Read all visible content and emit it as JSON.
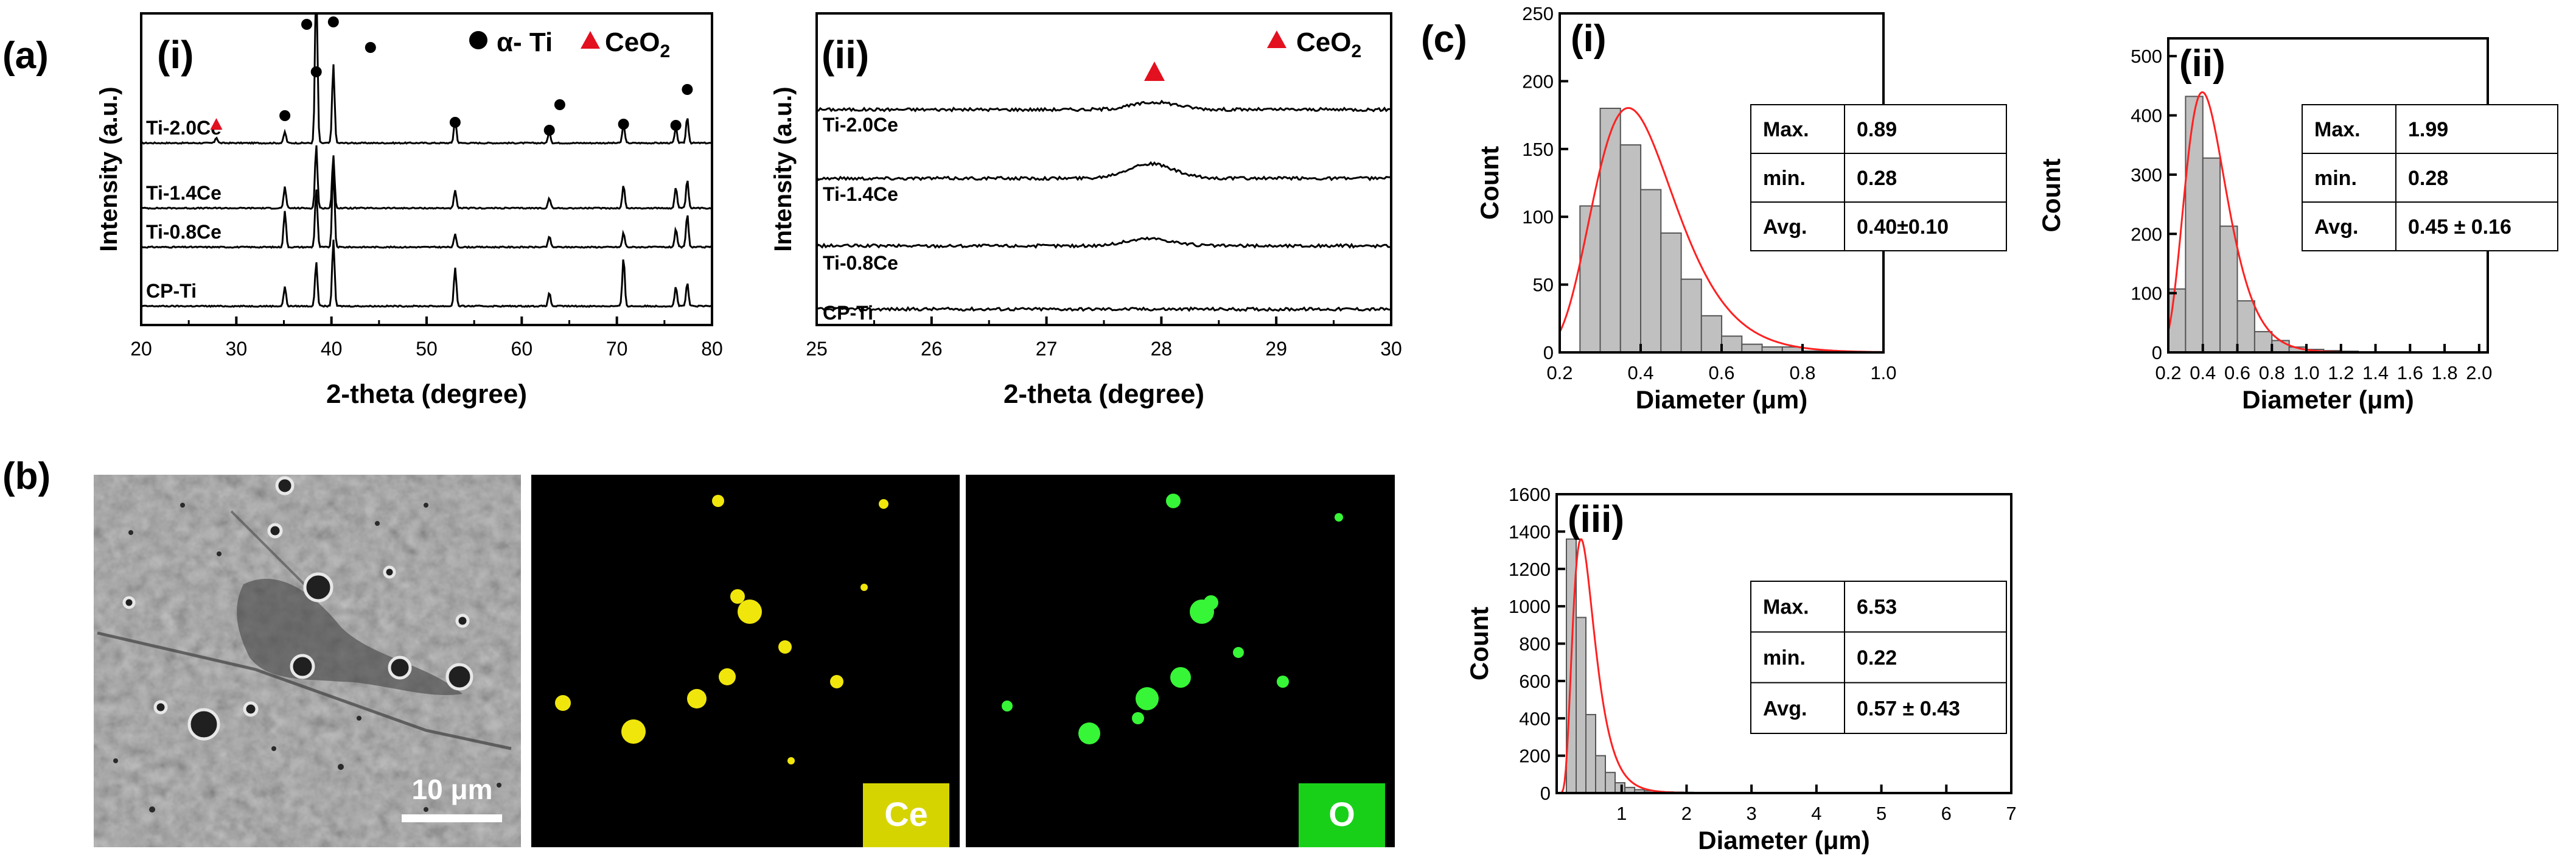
{
  "panel_labels": {
    "a": "(a)",
    "b": "(b)",
    "c": "(c)"
  },
  "subpanel_labels": {
    "xrd_full": "(i)",
    "xrd_zoom": "(ii)",
    "hist_i": "(i)",
    "hist_ii": "(ii)",
    "hist_iii": "(iii)"
  },
  "colors": {
    "alpha_ti": "#000000",
    "ceo2": "#e3101f",
    "bar_fill": "#c0c0c0",
    "fit_curve": "#ff2020",
    "ce_map": "#d6d400",
    "o_map": "#19d019",
    "axis": "#000000"
  },
  "chart_data": [
    {
      "id": "xrd_full",
      "type": "line",
      "title": "(i)",
      "xlabel": "2-theta (degree)",
      "ylabel": "Intensity (a.u.)",
      "xlim": [
        20,
        80
      ],
      "xticks": [
        "20",
        "30",
        "40",
        "50",
        "60",
        "70",
        "80"
      ],
      "legend": [
        {
          "marker": "circle",
          "label": "α- Ti"
        },
        {
          "marker": "triangle",
          "label": "CeO2",
          "label_main": "CeO",
          "label_sub": "2"
        }
      ],
      "series": [
        {
          "name": "Ti-2.0Ce",
          "label": "Ti-2.0Ce",
          "peaks": [
            [
              27.9,
              3
            ],
            [
              35.1,
              6
            ],
            [
              38.4,
              88
            ],
            [
              40.2,
              42
            ],
            [
              53.0,
              13
            ],
            [
              62.9,
              6
            ],
            [
              70.7,
              10
            ],
            [
              76.2,
              8
            ],
            [
              77.4,
              14
            ]
          ]
        },
        {
          "name": "Ti-1.4Ce",
          "label": "Ti-1.4Ce",
          "peaks": [
            [
              35.1,
              12
            ],
            [
              38.4,
              36
            ],
            [
              40.2,
              30
            ],
            [
              53.0,
              10
            ],
            [
              62.9,
              6
            ],
            [
              70.7,
              13
            ],
            [
              76.2,
              12
            ],
            [
              77.4,
              16
            ]
          ]
        },
        {
          "name": "Ti-0.8Ce",
          "label": "Ti-0.8Ce",
          "peaks": [
            [
              35.1,
              20
            ],
            [
              38.4,
              32
            ],
            [
              40.2,
              45
            ],
            [
              53.0,
              7
            ],
            [
              62.9,
              6
            ],
            [
              70.7,
              8
            ],
            [
              76.2,
              10
            ],
            [
              77.4,
              18
            ]
          ]
        },
        {
          "name": "CP-Ti",
          "label": "CP-Ti",
          "peaks": [
            [
              35.1,
              10
            ],
            [
              38.4,
              23
            ],
            [
              40.2,
              34
            ],
            [
              53.0,
              20
            ],
            [
              62.9,
              7
            ],
            [
              70.7,
              25
            ],
            [
              76.2,
              10
            ],
            [
              77.4,
              12
            ]
          ]
        }
      ],
      "markers": {
        "alpha_ti_positions": [
          35.1,
          37.4,
          38.4,
          40.2,
          44.1,
          53.0,
          62.9,
          64.0,
          70.7,
          76.2,
          77.4
        ],
        "ceo2_positions": [
          27.9
        ]
      }
    },
    {
      "id": "xrd_zoom",
      "type": "line",
      "title": "(ii)",
      "xlabel": "2-theta (degree)",
      "ylabel": "Intensity (a.u.)",
      "xlim": [
        25,
        30
      ],
      "xticks": [
        "25",
        "26",
        "27",
        "28",
        "29",
        "30"
      ],
      "legend": [
        {
          "marker": "triangle",
          "label": "CeO2",
          "label_main": "CeO",
          "label_sub": "2"
        }
      ],
      "series": [
        {
          "name": "Ti-2.0Ce",
          "label": "Ti-2.0Ce",
          "peak_2theta": 27.95,
          "peak_height": 3
        },
        {
          "name": "Ti-1.4Ce",
          "label": "Ti-1.4Ce",
          "peak_2theta": 27.9,
          "peak_height": 6
        },
        {
          "name": "Ti-0.8Ce",
          "label": "Ti-0.8Ce",
          "peak_2theta": 27.9,
          "peak_height": 3
        },
        {
          "name": "CP-Ti",
          "label": "CP-Ti",
          "peak_2theta": 27.9,
          "peak_height": 0
        }
      ],
      "markers": {
        "ceo2_positions": [
          27.95
        ]
      }
    },
    {
      "id": "hist_i",
      "type": "bar",
      "title": "(i)",
      "xlabel": "Diameter (μm)",
      "ylabel": "Count",
      "xlim": [
        0.2,
        1.0
      ],
      "ylim": [
        0,
        250
      ],
      "xticks": [
        "0.2",
        "0.4",
        "0.6",
        "0.8",
        "1.0"
      ],
      "yticks": [
        "0",
        "50",
        "100",
        "150",
        "200",
        "250"
      ],
      "bin_start": 0.25,
      "bin_width": 0.05,
      "values": [
        108,
        180,
        153,
        120,
        88,
        54,
        27,
        12,
        6,
        4,
        4,
        1,
        1
      ],
      "fit": {
        "type": "lognormal",
        "mu": -0.92,
        "sigma": 0.275,
        "amplitude": 180,
        "mode": 0.375
      },
      "stats_table": [
        [
          "Max.",
          "0.89"
        ],
        [
          "min.",
          "0.28"
        ],
        [
          "Avg.",
          "0.40±0.10"
        ]
      ]
    },
    {
      "id": "hist_ii",
      "type": "bar",
      "title": "(ii)",
      "xlabel": "Diameter (μm)",
      "ylabel": "Count",
      "xlim": [
        0.2,
        2.05
      ],
      "ylim": [
        0,
        530
      ],
      "xticks": [
        "0.2",
        "0.4",
        "0.6",
        "0.8",
        "1.0",
        "1.2",
        "1.4",
        "1.6",
        "1.8",
        "2.0"
      ],
      "yticks": [
        "0",
        "100",
        "200",
        "300",
        "400",
        "500"
      ],
      "bin_start": 0.2,
      "bin_width": 0.1,
      "values": [
        107,
        432,
        328,
        213,
        87,
        35,
        20,
        9,
        5,
        3,
        2,
        1,
        1,
        1,
        1,
        1,
        1,
        1,
        1
      ],
      "fit": {
        "type": "lognormal",
        "mu": -0.83,
        "sigma": 0.305,
        "amplitude": 432,
        "mode": 0.42
      },
      "stats_table": [
        [
          "Max.",
          "1.99"
        ],
        [
          "min.",
          "0.28"
        ],
        [
          "Avg.",
          "0.45 ± 0.16"
        ]
      ]
    },
    {
      "id": "hist_iii",
      "type": "bar",
      "title": "(iii)",
      "xlabel": "Diameter (μm)",
      "ylabel": "Count",
      "xlim": [
        0,
        7
      ],
      "ylim": [
        0,
        1600
      ],
      "xticks": [
        "1",
        "2",
        "3",
        "4",
        "5",
        "6",
        "7"
      ],
      "yticks": [
        "0",
        "200",
        "400",
        "600",
        "800",
        "1000",
        "1200",
        "1400",
        "1600"
      ],
      "bin_start": 0.15,
      "bin_width": 0.15,
      "values": [
        1360,
        940,
        420,
        200,
        110,
        55,
        30,
        18,
        12,
        8,
        6,
        5,
        4,
        3,
        3,
        2,
        2,
        2,
        1,
        1,
        1,
        1,
        1,
        1
      ],
      "fit": {
        "type": "lognormal",
        "mu": -0.78,
        "sigma": 0.45,
        "amplitude": 1360,
        "mode": 0.37
      },
      "stats_table": [
        [
          "Max.",
          "6.53"
        ],
        [
          "min.",
          "0.22"
        ],
        [
          "Avg.",
          "0.57 ± 0.43"
        ]
      ]
    }
  ],
  "micrographs": {
    "sem": {
      "scale_bar_label": "10 μm"
    },
    "ce_map": {
      "element_label": "Ce"
    },
    "o_map": {
      "element_label": "O"
    }
  }
}
